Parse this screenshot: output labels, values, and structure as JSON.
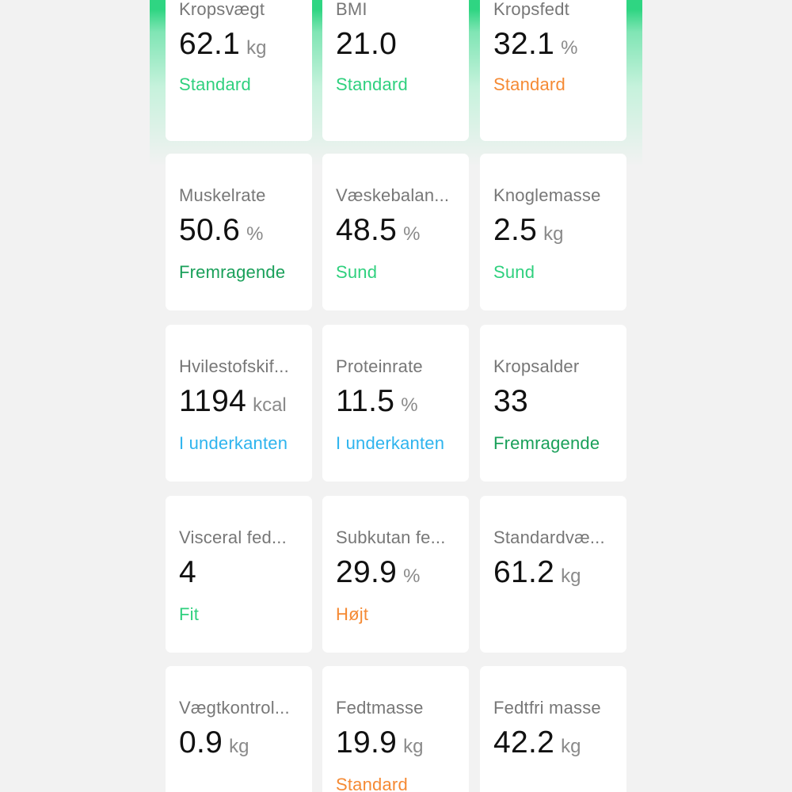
{
  "colors": {
    "header_green": "#2fd582",
    "standard_green": "#2fd07e",
    "excellent_green": "#1aa05a",
    "orange": "#f58a34",
    "blue": "#2eb4ee"
  },
  "metrics": [
    {
      "name": "Kropsvægt",
      "value": "62.1",
      "unit": "kg",
      "status": "Standard",
      "status_color": "#2fd07e"
    },
    {
      "name": "BMI",
      "value": "21.0",
      "unit": "",
      "status": "Standard",
      "status_color": "#2fd07e"
    },
    {
      "name": "Kropsfedt",
      "value": "32.1",
      "unit": "%",
      "status": "Standard",
      "status_color": "#f58a34"
    },
    {
      "name": "Muskelrate",
      "value": "50.6",
      "unit": "%",
      "status": "Fremragende",
      "status_color": "#1aa05a"
    },
    {
      "name": "Væskebalan...",
      "value": "48.5",
      "unit": "%",
      "status": "Sund",
      "status_color": "#2fd07e"
    },
    {
      "name": "Knoglemasse",
      "value": "2.5",
      "unit": "kg",
      "status": "Sund",
      "status_color": "#2fd07e"
    },
    {
      "name": "Hvilestofskif...",
      "value": "1194",
      "unit": "kcal",
      "status": "I underkanten",
      "status_color": "#2eb4ee"
    },
    {
      "name": "Proteinrate",
      "value": "11.5",
      "unit": "%",
      "status": "I underkanten",
      "status_color": "#2eb4ee"
    },
    {
      "name": "Kropsalder",
      "value": "33",
      "unit": "",
      "status": "Fremragende",
      "status_color": "#1aa05a"
    },
    {
      "name": "Visceral fed...",
      "value": "4",
      "unit": "",
      "status": "Fit",
      "status_color": "#2fd07e"
    },
    {
      "name": "Subkutan fe...",
      "value": "29.9",
      "unit": "%",
      "status": "Højt",
      "status_color": "#f58a34"
    },
    {
      "name": "Standardvæ...",
      "value": "61.2",
      "unit": "kg",
      "status": "",
      "status_color": "#2fd07e"
    },
    {
      "name": "Vægtkontrol...",
      "value": "0.9",
      "unit": "kg",
      "status": "",
      "status_color": "#2fd07e"
    },
    {
      "name": "Fedtmasse",
      "value": "19.9",
      "unit": "kg",
      "status": "Standard",
      "status_color": "#f58a34"
    },
    {
      "name": "Fedtfri masse",
      "value": "42.2",
      "unit": "kg",
      "status": "",
      "status_color": "#2fd07e"
    }
  ]
}
